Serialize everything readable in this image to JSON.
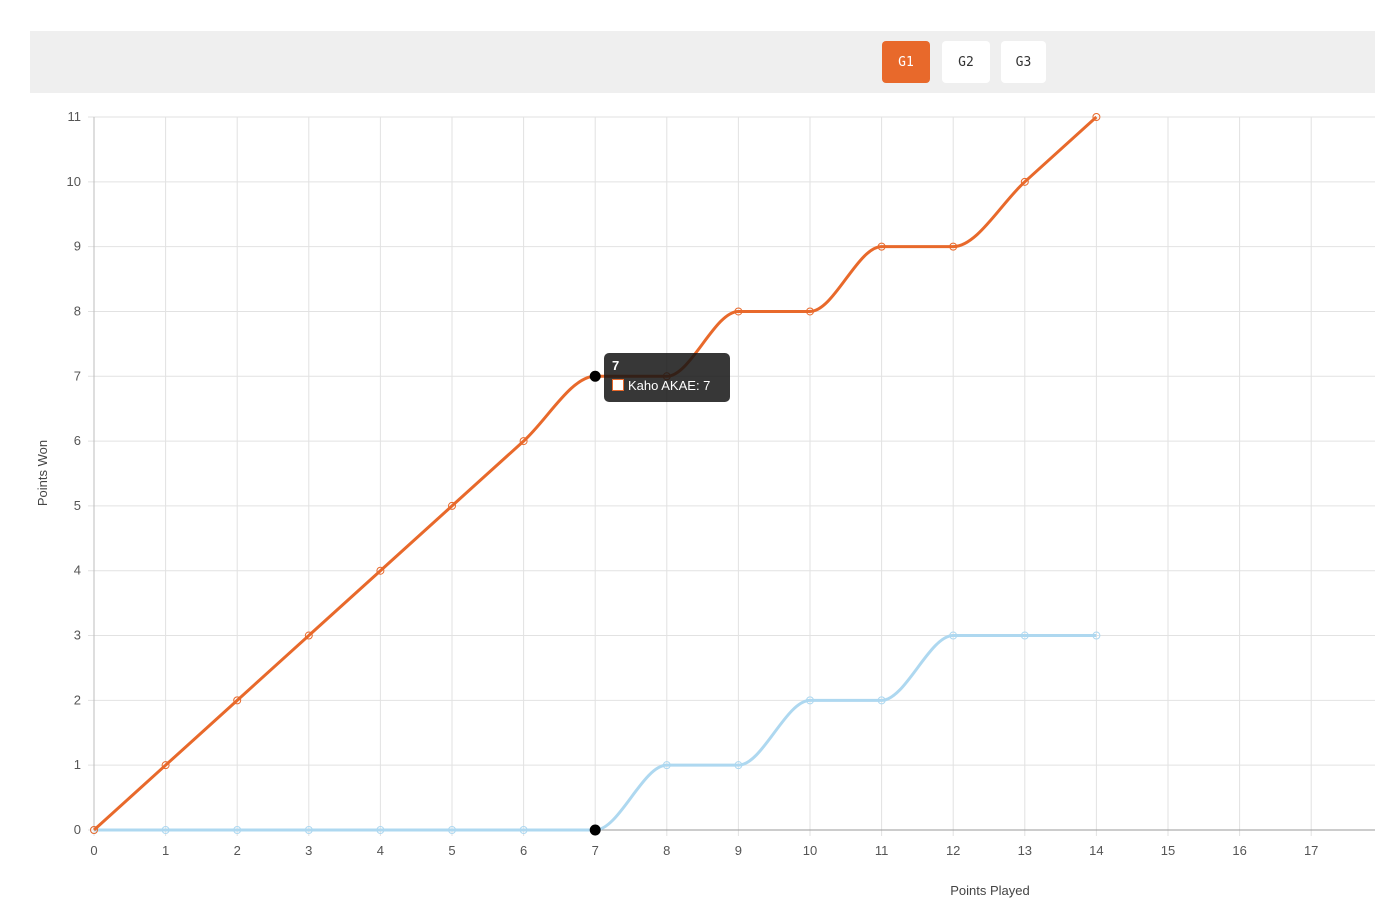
{
  "game_tabs": [
    {
      "label": "G1",
      "active": true
    },
    {
      "label": "G2",
      "active": false
    },
    {
      "label": "G3",
      "active": false
    }
  ],
  "colors": {
    "accent": "#e8692b",
    "series_1": "#e8692b",
    "series_2": "#aed8f0"
  },
  "tooltip": {
    "title": "7",
    "label": "Kaho AKAE: 7"
  },
  "chart_data": {
    "type": "line",
    "xlabel": "Points Played",
    "ylabel": "Points Won",
    "xlim": [
      0,
      17
    ],
    "ylim": [
      0,
      11
    ],
    "x_ticks": [
      0,
      1,
      2,
      3,
      4,
      5,
      6,
      7,
      8,
      9,
      10,
      11,
      12,
      13,
      14,
      15,
      16,
      17
    ],
    "y_ticks": [
      0,
      1,
      2,
      3,
      4,
      5,
      6,
      7,
      8,
      9,
      10,
      11
    ],
    "grid": true,
    "legend": "none",
    "series": [
      {
        "name": "Kaho AKAE",
        "color": "#e8692b",
        "x": [
          0,
          1,
          2,
          3,
          4,
          5,
          6,
          7,
          8,
          9,
          10,
          11,
          12,
          13,
          14
        ],
        "values": [
          0,
          1,
          2,
          3,
          4,
          5,
          6,
          7,
          7,
          8,
          8,
          9,
          9,
          10,
          11
        ]
      },
      {
        "color": "#aed8f0",
        "x": [
          0,
          1,
          2,
          3,
          4,
          5,
          6,
          7,
          8,
          9,
          10,
          11,
          12,
          13,
          14
        ],
        "values": [
          0,
          0,
          0,
          0,
          0,
          0,
          0,
          0,
          1,
          1,
          2,
          2,
          3,
          3,
          3
        ]
      }
    ]
  }
}
